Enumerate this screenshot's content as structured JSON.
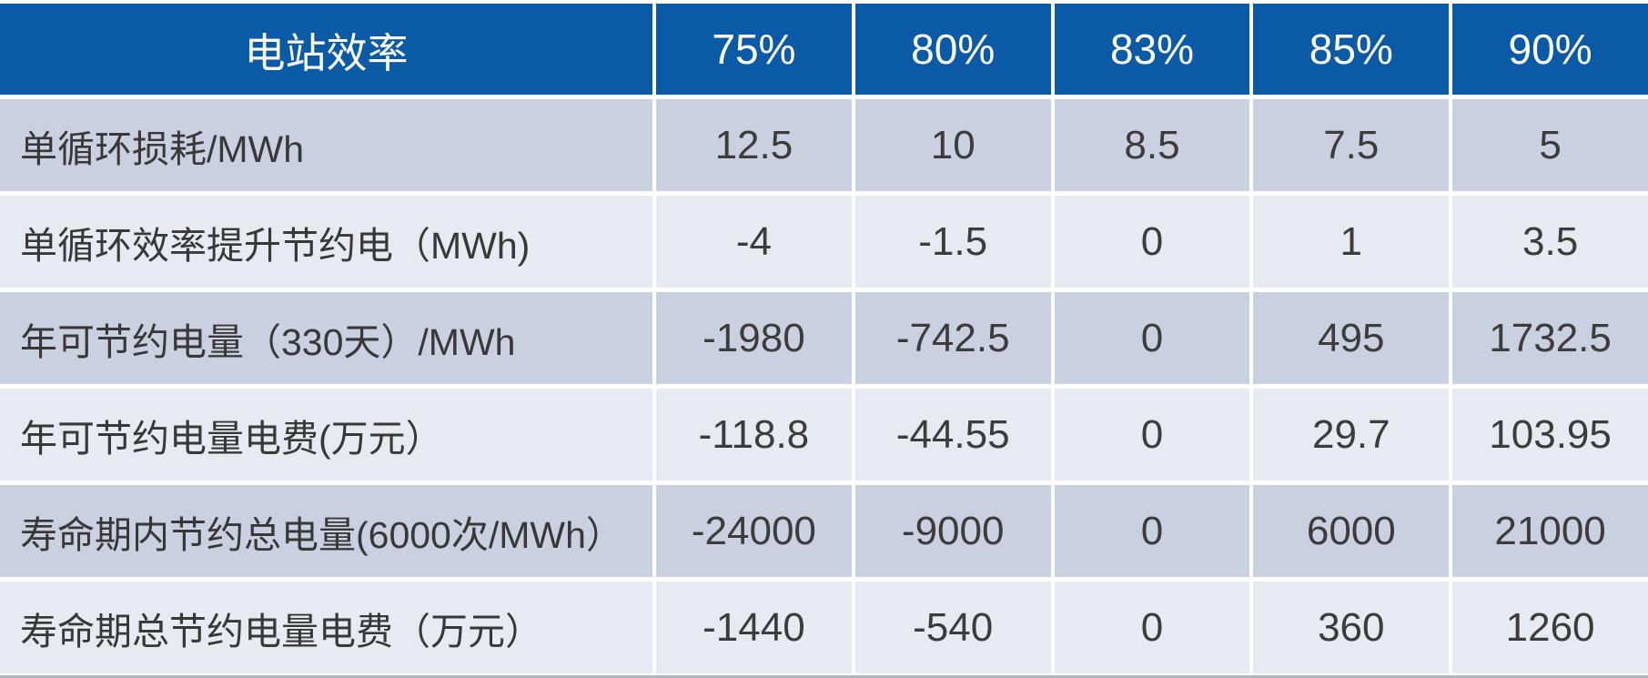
{
  "chart_data": {
    "type": "table",
    "title": "电站效率",
    "categories": [
      "75%",
      "80%",
      "83%",
      "85%",
      "90%"
    ],
    "series": [
      {
        "name": "单循环损耗/MWh",
        "values": [
          12.5,
          10,
          8.5,
          7.5,
          5
        ]
      },
      {
        "name": "单循环效率提升节约电（MWh)",
        "values": [
          -4,
          -1.5,
          0,
          1,
          3.5
        ]
      },
      {
        "name": "年可节约电量（330天）/MWh",
        "values": [
          -1980,
          -742.5,
          0,
          495,
          1732.5
        ]
      },
      {
        "name": "年可节约电量电费(万元）",
        "values": [
          -118.8,
          -44.55,
          0,
          29.7,
          103.95
        ]
      },
      {
        "name": "寿命期内节约总电量(6000次/MWh）",
        "values": [
          -24000,
          -9000,
          0,
          6000,
          21000
        ]
      },
      {
        "name": "寿命期总节约电量电费（万元）",
        "values": [
          -1440,
          -540,
          0,
          360,
          1260
        ]
      }
    ],
    "layout": {
      "header_position": "top",
      "label_column_position": "left",
      "grid": "white gutters between all cells",
      "row_striping": "alternating dark/light starting dark"
    }
  },
  "colors": {
    "header_bg": "#0b5aa5",
    "header_text": "#ffffff",
    "row_dark_bg": "#cbd0e0",
    "row_light_bg": "#e8eaf2",
    "body_text": "#3c3c3c",
    "gutter": "#ffffff",
    "bottom_strip": "#b0b5c4"
  }
}
